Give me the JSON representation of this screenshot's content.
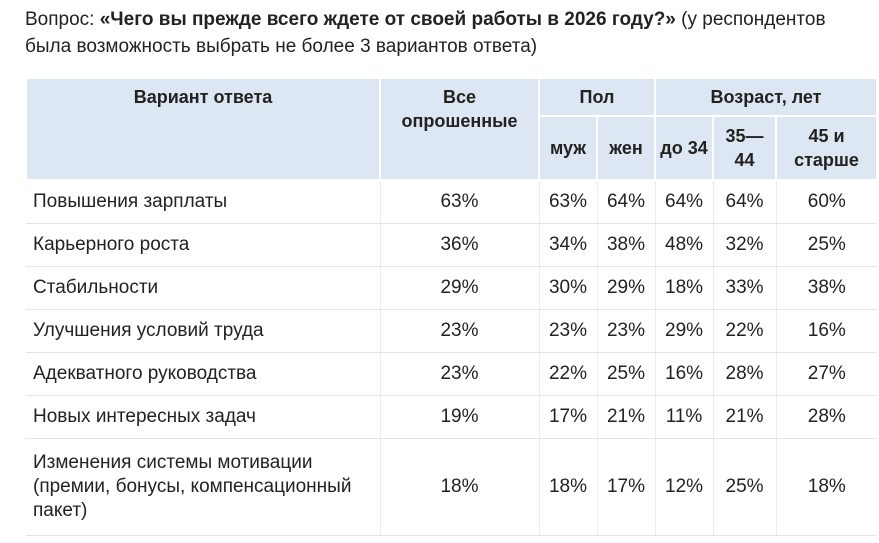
{
  "question": {
    "prefix": "Вопрос: ",
    "text": "«Чего вы прежде всего ждете от своей работы в 2026 году?»",
    "note": " (у респондентов была возможность выбрать не более 3 вариантов ответа)"
  },
  "table": {
    "headers": {
      "option": "Вариант ответа",
      "all": "Все опрошенные",
      "gender": "Пол",
      "age": "Возраст, лет",
      "male": "муж",
      "female": "жен",
      "age1": "до 34",
      "age2": "35—44",
      "age3": "45 и старше"
    },
    "rows": [
      {
        "label": "Повышения зарплаты",
        "all": "63%",
        "male": "63%",
        "female": "64%",
        "age1": "64%",
        "age2": "64%",
        "age3": "60%"
      },
      {
        "label": "Карьерного роста",
        "all": "36%",
        "male": "34%",
        "female": "38%",
        "age1": "48%",
        "age2": "32%",
        "age3": "25%"
      },
      {
        "label": "Стабильности",
        "all": "29%",
        "male": "30%",
        "female": "29%",
        "age1": "18%",
        "age2": "33%",
        "age3": "38%"
      },
      {
        "label": "Улучшения условий труда",
        "all": "23%",
        "male": "23%",
        "female": "23%",
        "age1": "29%",
        "age2": "22%",
        "age3": "16%"
      },
      {
        "label": "Адекватного руководства",
        "all": "23%",
        "male": "22%",
        "female": "25%",
        "age1": "16%",
        "age2": "28%",
        "age3": "27%"
      },
      {
        "label": "Новых интересных задач",
        "all": "19%",
        "male": "17%",
        "female": "21%",
        "age1": "11%",
        "age2": "21%",
        "age3": "28%"
      },
      {
        "label": "Изменения системы мотивации (премии, бонусы, компенсационный пакет)",
        "all": "18%",
        "male": "18%",
        "female": "17%",
        "age1": "12%",
        "age2": "25%",
        "age3": "18%"
      }
    ]
  },
  "colors": {
    "header_bg": "#dde6f3",
    "text": "#222222"
  }
}
